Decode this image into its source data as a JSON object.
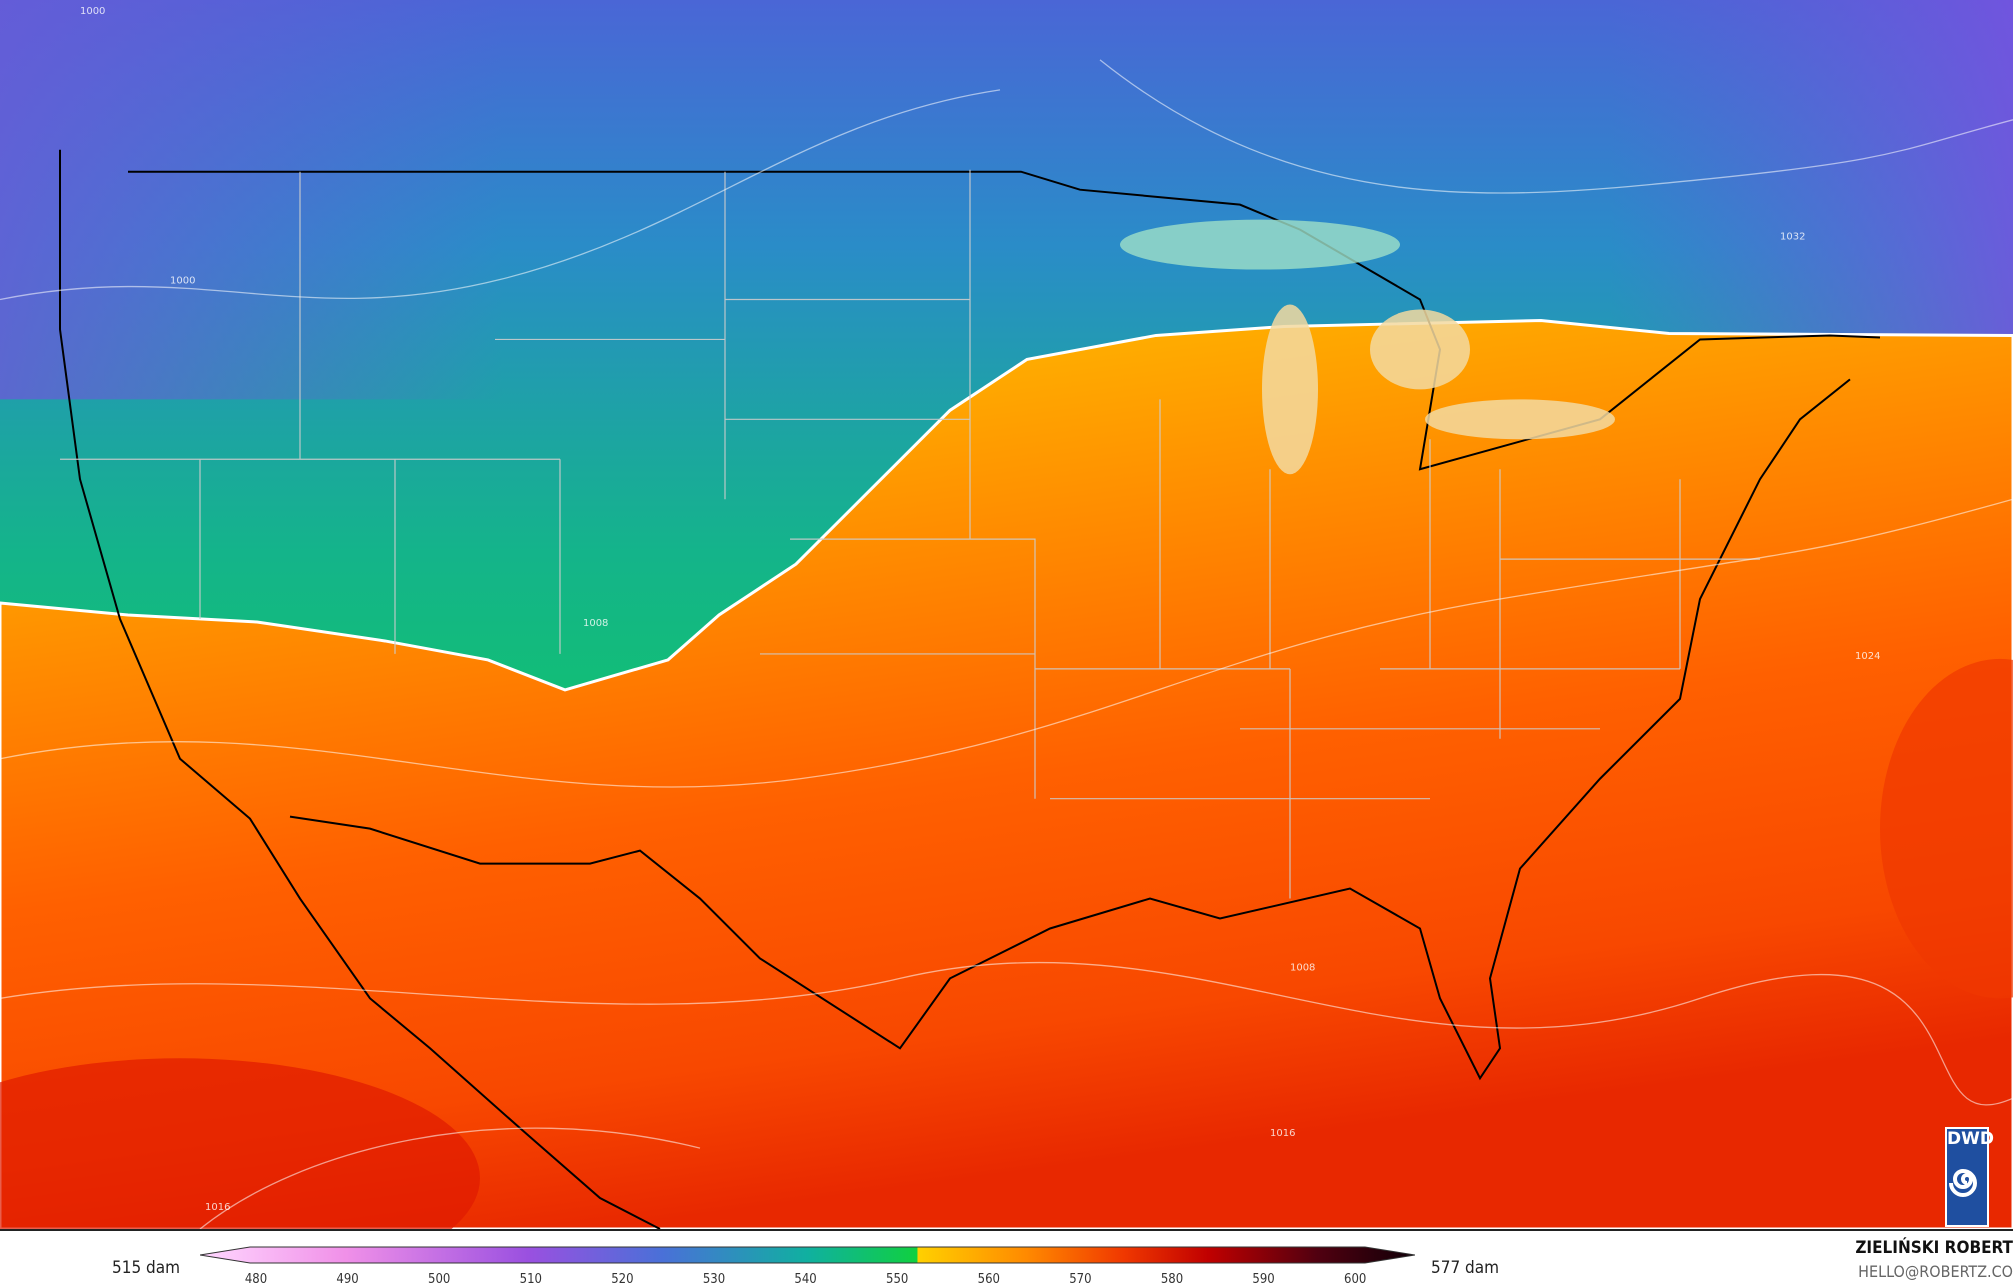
{
  "map": {
    "variable_left_label": "515 dam",
    "variable_right_label": "577 dam",
    "contour_labels": [
      "1000",
      "1000",
      "1008",
      "1008",
      "1016",
      "1016",
      "1024",
      "1032"
    ],
    "colors": {
      "purple": "#6a5ad8",
      "blue": "#3a78d0",
      "green": "#10d040",
      "yellow": "#ffc81a",
      "orange": "#ff8a00",
      "red": "#f04000",
      "deep_red": "#e01a00"
    }
  },
  "colorbar": {
    "ticks": [
      "480",
      "490",
      "500",
      "510",
      "520",
      "530",
      "540",
      "550",
      "560",
      "570",
      "580",
      "590",
      "600"
    ],
    "range": [
      475,
      605
    ]
  },
  "credits": {
    "author": "ZIELIŃSKI ROBERT",
    "email": "HELLO@ROBERTZ.CO",
    "logo": "DWD"
  }
}
